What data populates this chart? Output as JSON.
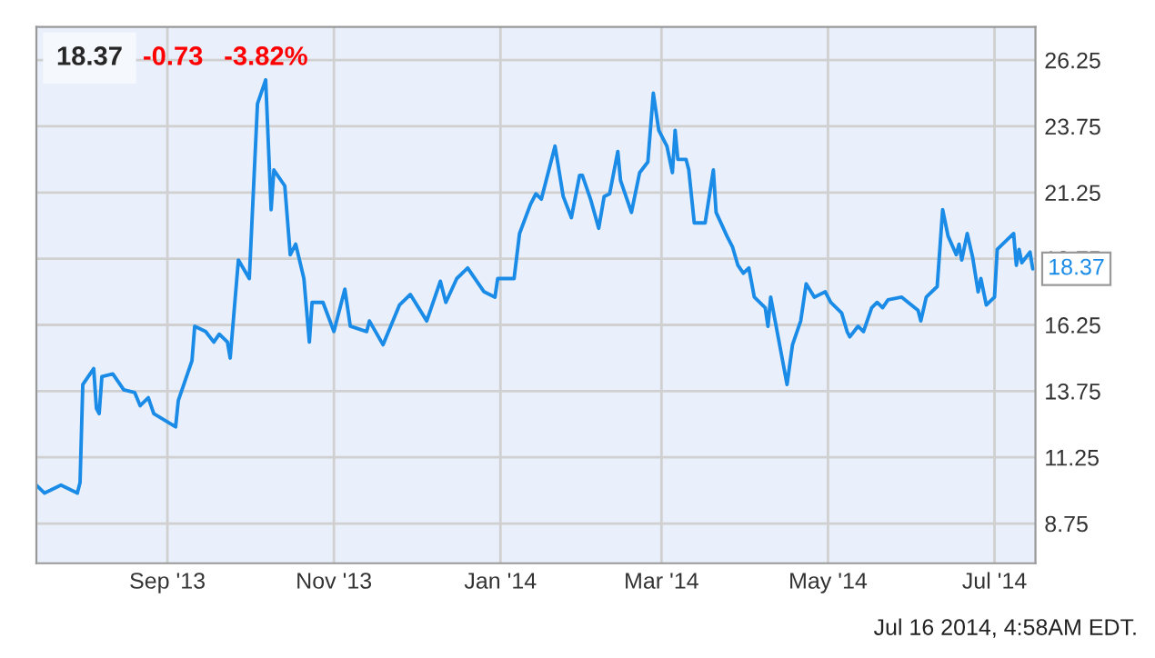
{
  "chart_data": {
    "type": "line",
    "title": "18.37",
    "annotations": [
      "-0.73",
      "-3.82%",
      "Jul 16 2014, 4:58AM EDT.",
      {
        "text": "18.37",
        "x": "2014-07-15",
        "y": 18.37
      }
    ],
    "x": [
      "2013-07-15",
      "2013-07-18",
      "2013-07-24",
      "2013-07-30",
      "2013-07-31",
      "2013-08-01",
      "2013-08-05",
      "2013-08-06",
      "2013-08-07",
      "2013-08-08",
      "2013-08-12",
      "2013-08-16",
      "2013-08-20",
      "2013-08-22",
      "2013-08-25",
      "2013-08-27",
      "2013-09-04",
      "2013-09-05",
      "2013-09-10",
      "2013-09-11",
      "2013-09-15",
      "2013-09-18",
      "2013-09-20",
      "2013-09-23",
      "2013-09-24",
      "2013-09-27",
      "2013-10-01",
      "2013-10-04",
      "2013-10-07",
      "2013-10-09",
      "2013-10-10",
      "2013-10-14",
      "2013-10-16",
      "2013-10-18",
      "2013-10-21",
      "2013-10-23",
      "2013-10-24",
      "2013-10-28",
      "2013-11-01",
      "2013-11-05",
      "2013-11-07",
      "2013-11-13",
      "2013-11-14",
      "2013-11-19",
      "2013-11-25",
      "2013-11-29",
      "2013-12-05",
      "2013-12-10",
      "2013-12-12",
      "2013-12-16",
      "2013-12-20",
      "2013-12-26",
      "2013-12-30",
      "2013-12-31",
      "2014-01-06",
      "2014-01-08",
      "2014-01-12",
      "2014-01-14",
      "2014-01-16",
      "2014-01-21",
      "2014-01-24",
      "2014-01-27",
      "2014-01-30",
      "2014-01-31",
      "2014-02-03",
      "2014-02-06",
      "2014-02-08",
      "2014-02-10",
      "2014-02-13",
      "2014-02-14",
      "2014-02-18",
      "2014-02-21",
      "2014-02-24",
      "2014-02-26",
      "2014-02-28",
      "2014-03-03",
      "2014-03-05",
      "2014-03-06",
      "2014-03-07",
      "2014-03-10",
      "2014-03-11",
      "2014-03-13",
      "2014-03-17",
      "2014-03-20",
      "2014-03-21",
      "2014-03-25",
      "2014-03-27",
      "2014-03-29",
      "2014-03-31",
      "2014-04-02",
      "2014-04-04",
      "2014-04-08",
      "2014-04-09",
      "2014-04-10",
      "2014-04-12",
      "2014-04-14",
      "2014-04-16",
      "2014-04-18",
      "2014-04-21",
      "2014-04-23",
      "2014-04-26",
      "2014-04-30",
      "2014-05-02",
      "2014-05-06",
      "2014-05-08",
      "2014-05-09",
      "2014-05-12",
      "2014-05-14",
      "2014-05-17",
      "2014-05-19",
      "2014-05-21",
      "2014-05-23",
      "2014-05-28",
      "2014-06-03",
      "2014-06-04",
      "2014-06-06",
      "2014-06-10",
      "2014-06-12",
      "2014-06-14",
      "2014-06-17",
      "2014-06-18",
      "2014-06-19",
      "2014-06-21",
      "2014-06-23",
      "2014-06-25",
      "2014-06-26",
      "2014-06-28",
      "2014-07-01",
      "2014-07-02",
      "2014-07-08",
      "2014-07-09",
      "2014-07-10",
      "2014-07-11",
      "2014-07-14",
      "2014-07-15"
    ],
    "series": [
      {
        "color": "#1a8be6",
        "values": [
          10.2,
          9.9,
          10.2,
          9.9,
          10.3,
          14.0,
          14.6,
          13.1,
          12.9,
          14.3,
          14.4,
          13.8,
          13.7,
          13.2,
          13.5,
          12.9,
          12.4,
          13.4,
          14.9,
          16.2,
          16.0,
          15.6,
          15.9,
          15.6,
          15.0,
          18.7,
          18.0,
          24.6,
          25.5,
          20.6,
          22.1,
          21.5,
          18.9,
          19.3,
          18.0,
          15.6,
          17.1,
          17.1,
          16.0,
          17.6,
          16.2,
          16.0,
          16.4,
          15.5,
          17.0,
          17.4,
          16.4,
          17.9,
          17.1,
          18.0,
          18.4,
          17.5,
          17.3,
          18.0,
          18.0,
          19.7,
          20.8,
          21.2,
          21.0,
          23.0,
          21.1,
          20.3,
          21.9,
          21.9,
          21.0,
          19.9,
          21.1,
          21.2,
          22.8,
          21.7,
          20.5,
          22.0,
          22.4,
          25.0,
          23.6,
          23.0,
          22.0,
          23.6,
          22.5,
          22.5,
          22.1,
          20.1,
          20.1,
          22.1,
          20.5,
          19.6,
          19.2,
          18.5,
          18.2,
          18.4,
          17.3,
          16.9,
          16.2,
          17.3,
          16.2,
          15.1,
          14.0,
          15.5,
          16.4,
          17.8,
          17.3,
          17.5,
          17.1,
          16.7,
          16.0,
          15.8,
          16.2,
          16.0,
          16.9,
          17.1,
          16.9,
          17.2,
          17.3,
          16.8,
          16.4,
          17.3,
          17.7,
          20.6,
          19.6,
          18.9,
          19.3,
          18.7,
          19.7,
          18.8,
          17.5,
          18.0,
          17.0,
          17.3,
          19.1,
          19.7,
          18.5,
          19.1,
          18.6,
          19.0,
          18.37
        ]
      }
    ],
    "xlim": [
      "2013-07-15",
      "2014-07-16"
    ],
    "xticks": [
      {
        "value": "2013-09-01",
        "label": "Sep '13"
      },
      {
        "value": "2013-11-01",
        "label": "Nov '13"
      },
      {
        "value": "2014-01-01",
        "label": "Jan '14"
      },
      {
        "value": "2014-03-01",
        "label": "Mar '14"
      },
      {
        "value": "2014-05-01",
        "label": "May '14"
      },
      {
        "value": "2014-07-01",
        "label": "Jul '14"
      }
    ],
    "ylim": [
      7.25,
      27.5
    ],
    "yticks": [
      8.75,
      11.25,
      13.75,
      16.25,
      18.75,
      21.25,
      23.75,
      26.25
    ],
    "grid": true,
    "marker": "none",
    "line_style": "solid"
  }
}
